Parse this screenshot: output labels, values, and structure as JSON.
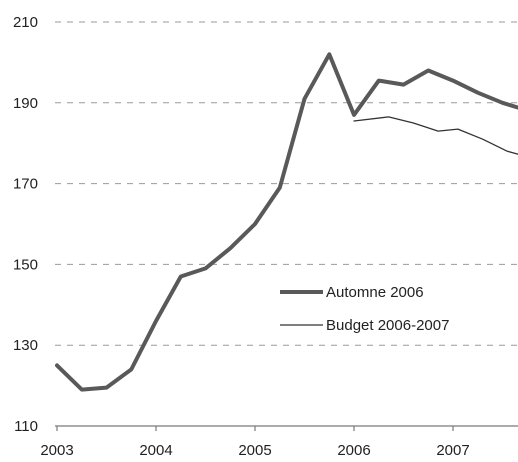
{
  "chart_data": {
    "type": "line",
    "title": "",
    "xlabel": "",
    "ylabel": "",
    "xlim": [
      2003,
      2007.7
    ],
    "ylim": [
      110,
      210
    ],
    "x_ticks": [
      2003,
      2004,
      2005,
      2006,
      2007
    ],
    "x_tick_labels": [
      "2003",
      "2004",
      "2005",
      "2006",
      "2007"
    ],
    "y_ticks": [
      110,
      130,
      150,
      170,
      190,
      210
    ],
    "y_tick_labels": [
      "110",
      "130",
      "150",
      "170",
      "190",
      "210"
    ],
    "grid": "horizontal dashed",
    "legend_placement": "lower-right",
    "series": [
      {
        "name": "Automne 2006",
        "color": "#595959",
        "style": "thick",
        "points": [
          [
            2003.0,
            125.0
          ],
          [
            2003.25,
            119.0
          ],
          [
            2003.5,
            119.5
          ],
          [
            2003.75,
            124.0
          ],
          [
            2004.0,
            136.0
          ],
          [
            2004.25,
            147.0
          ],
          [
            2004.5,
            149.0
          ],
          [
            2004.75,
            154.0
          ],
          [
            2005.0,
            160.0
          ],
          [
            2005.25,
            169.0
          ],
          [
            2005.5,
            191.0
          ],
          [
            2005.75,
            202.0
          ],
          [
            2006.0,
            187.0
          ],
          [
            2006.25,
            195.5
          ],
          [
            2006.5,
            194.5
          ],
          [
            2006.75,
            198.0
          ],
          [
            2007.0,
            195.5
          ],
          [
            2007.25,
            192.5
          ],
          [
            2007.5,
            190.0
          ],
          [
            2007.7,
            188.5
          ]
        ]
      },
      {
        "name": "Budget 2006-2007",
        "color": "#333333",
        "style": "thin",
        "points": [
          [
            2006.0,
            185.5
          ],
          [
            2006.35,
            186.5
          ],
          [
            2006.6,
            185.0
          ],
          [
            2006.85,
            183.0
          ],
          [
            2007.05,
            183.5
          ],
          [
            2007.3,
            181.0
          ],
          [
            2007.55,
            178.0
          ],
          [
            2007.7,
            177.0
          ]
        ]
      }
    ]
  }
}
